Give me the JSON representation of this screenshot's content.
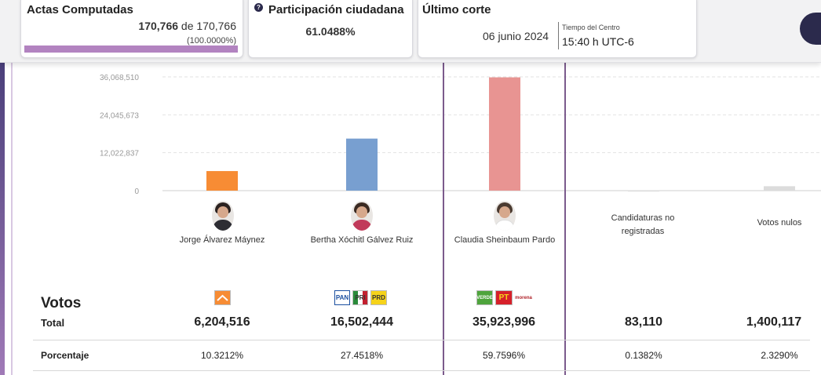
{
  "header": {
    "actas": {
      "title": "Actas Computadas",
      "computed": "170,766",
      "connector": " de ",
      "total": "170,766",
      "percent": "(100.0000%)",
      "progress": 1.0,
      "bar_color": "#b283c0"
    },
    "participacion": {
      "title": "Participación ciudadana",
      "value": "61.0488%",
      "icon": "info-icon"
    },
    "corte": {
      "title": "Último corte",
      "date": "06 junio 2024",
      "tz_label": "Tiempo del Centro",
      "time": "15:40 h UTC-6"
    }
  },
  "chart_data": {
    "type": "bar",
    "categories": [
      "Jorge Álvarez Máynez",
      "Bertha Xóchitl Gálvez Ruiz",
      "Claudia Sheinbaum Pardo",
      "Candidaturas no registradas",
      "Votos nulos"
    ],
    "values": [
      6204516,
      16502444,
      35923996,
      83110,
      1400117
    ],
    "colors": [
      "#f78c34",
      "#789fd0",
      "#e89492",
      "#dcdcdc",
      "#dcdcdc"
    ],
    "yticks": [
      0,
      12022837,
      24045673,
      36068510
    ],
    "ytick_labels": [
      "0",
      "12,022,837",
      "24,045,673",
      "36,068,510"
    ],
    "ylim": [
      0,
      36068510
    ],
    "grid": true,
    "title": "",
    "xlabel": "",
    "ylabel": ""
  },
  "table": {
    "votos_label": "Votos",
    "total_label": "Total",
    "porcentaje_label": "Porcentaje",
    "totals": [
      "6,204,516",
      "16,502,444",
      "35,923,996",
      "83,110",
      "1,400,117"
    ],
    "percents": [
      "10.3212%",
      "27.4518%",
      "59.7596%",
      "0.1382%",
      "2.3290%"
    ]
  },
  "candidates": [
    {
      "name": "Jorge Álvarez Máynez",
      "icon": "candidate-photo-icon"
    },
    {
      "name": "Bertha Xóchitl Gálvez Ruiz",
      "icon": "candidate-photo-icon"
    },
    {
      "name": "Claudia Sheinbaum Pardo",
      "icon": "candidate-photo-icon"
    }
  ],
  "others": [
    {
      "name": "Candidaturas no registradas"
    },
    {
      "name": "Votos nulos"
    }
  ],
  "party_logos": {
    "mc": {
      "name": "movimiento-ciudadano-logo",
      "color": "#f78c34"
    },
    "pan": {
      "text": "PAN",
      "color": "#1b4fa0"
    },
    "pri": {
      "text": "PRI",
      "color": "#c2202f"
    },
    "prd": {
      "text": "PRD",
      "color": "#f6d31a"
    },
    "verde": {
      "text": "VERDE",
      "color": "#4ea43c"
    },
    "pt": {
      "text": "PT",
      "color": "#d6202a"
    },
    "morena": {
      "text": "morena",
      "color": "#b0232a"
    }
  }
}
